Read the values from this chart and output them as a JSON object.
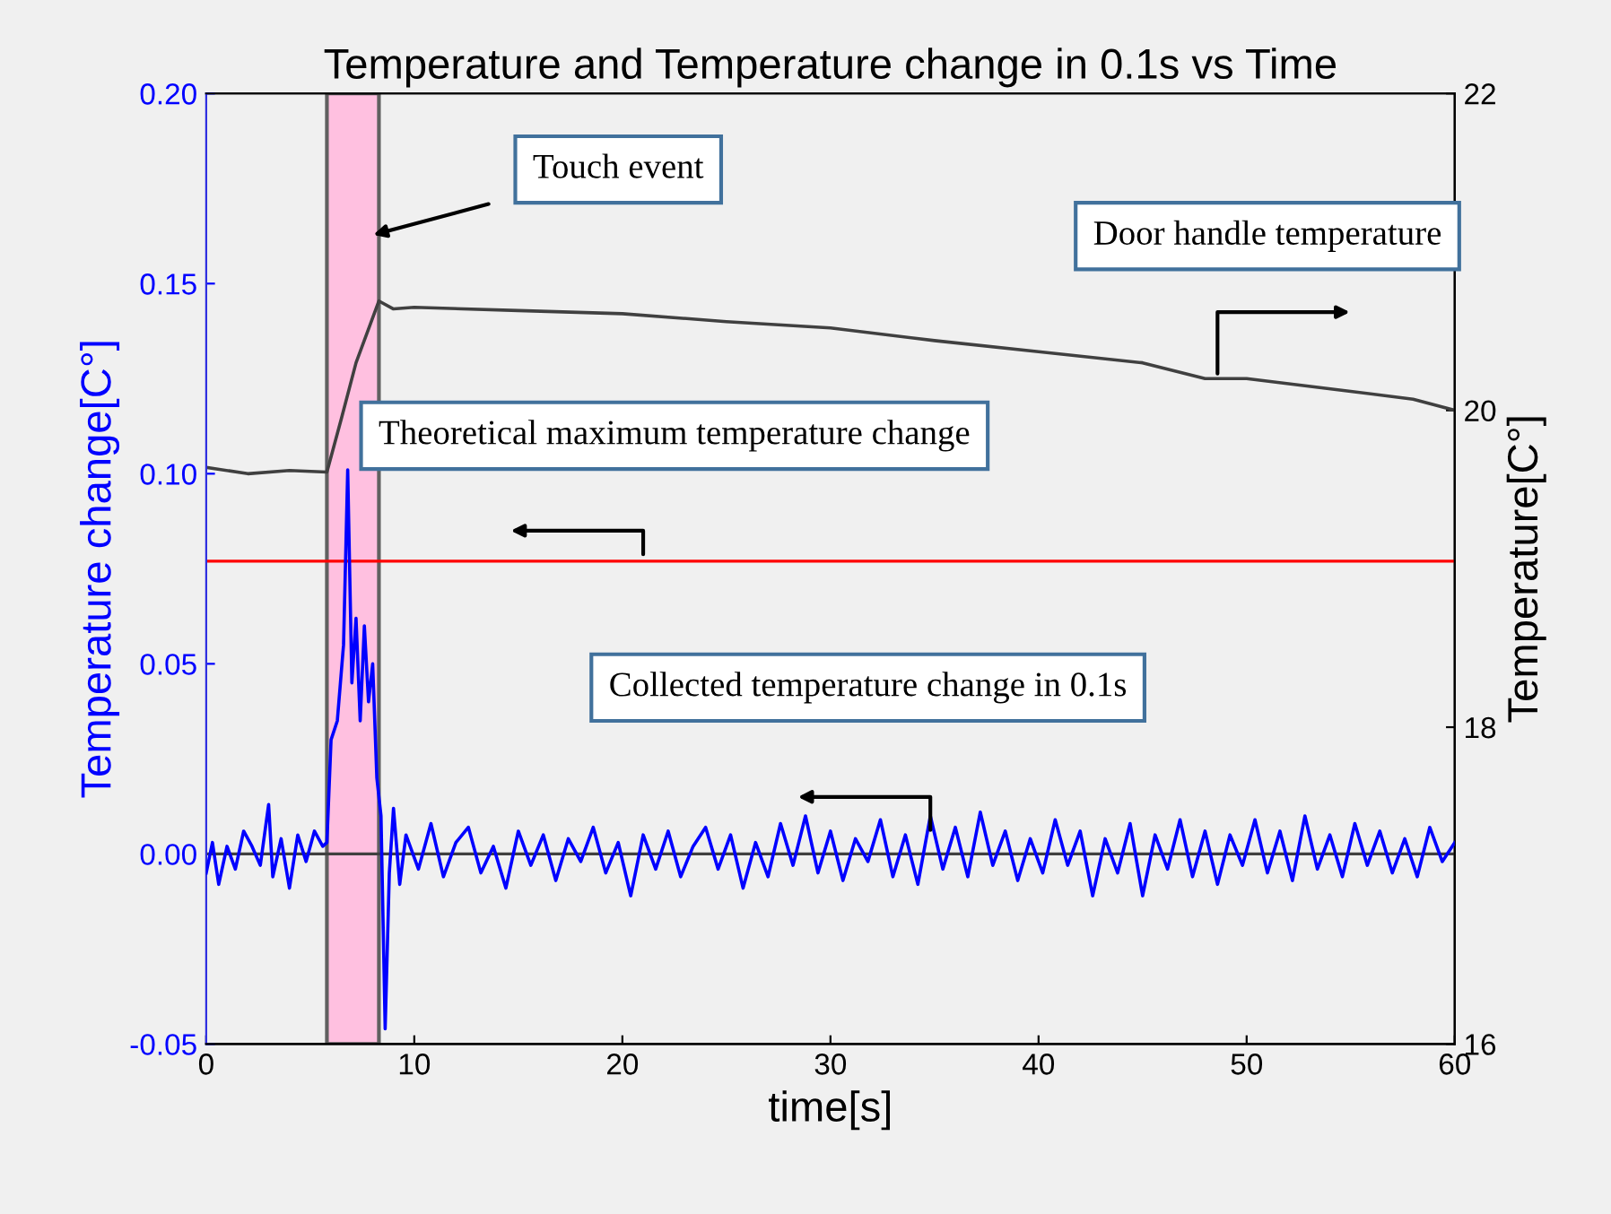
{
  "chart_data": {
    "type": "line",
    "title": "Temperature and Temperature change in 0.1s vs Time",
    "xlabel": "time[s]",
    "ylabel": "Temperature change[C°]",
    "y2label": "Temperature[C°]",
    "xlim": [
      0,
      60
    ],
    "xticks": [
      0,
      10,
      20,
      30,
      40,
      50,
      60
    ],
    "ylim": [
      -0.05,
      0.2
    ],
    "yticks": [
      {
        "value": -0.05,
        "label": "-0.05"
      },
      {
        "value": 0,
        "label": "0.00"
      },
      {
        "value": 0.05,
        "label": "0.05"
      },
      {
        "value": 0.1,
        "label": "0.10"
      },
      {
        "value": 0.15,
        "label": "0.15"
      },
      {
        "value": 0.2,
        "label": "0.20"
      }
    ],
    "y2lim": [
      16,
      22
    ],
    "y2ticks": [
      16,
      18,
      20,
      22
    ],
    "grid": false,
    "legend": false,
    "series": [
      {
        "color": "#0000ff",
        "axis": "y",
        "x": [
          0,
          0.3,
          0.6,
          1,
          1.4,
          1.8,
          2.2,
          2.6,
          3,
          3.2,
          3.6,
          4,
          4.4,
          4.8,
          5.2,
          5.6,
          5.8,
          6.0,
          6.3,
          6.6,
          6.8,
          7.0,
          7.2,
          7.4,
          7.6,
          7.8,
          8.0,
          8.2,
          8.4,
          8.6,
          8.8,
          9.0,
          9.3,
          9.6,
          10.2,
          10.8,
          11.4,
          12,
          12.6,
          13.2,
          13.8,
          14.4,
          15,
          15.6,
          16.2,
          16.8,
          17.4,
          18,
          18.6,
          19.2,
          19.8,
          20.4,
          21,
          21.6,
          22.2,
          22.8,
          23.4,
          24,
          24.6,
          25.2,
          25.8,
          26.4,
          27,
          27.6,
          28.2,
          28.8,
          29.4,
          30,
          30.6,
          31.2,
          31.8,
          32.4,
          33,
          33.6,
          34.2,
          34.8,
          35.4,
          36,
          36.6,
          37.2,
          37.8,
          38.4,
          39,
          39.6,
          40.2,
          40.8,
          41.4,
          42,
          42.6,
          43.2,
          43.8,
          44.4,
          45,
          45.6,
          46.2,
          46.8,
          47.4,
          48,
          48.6,
          49.2,
          49.8,
          50.4,
          51,
          51.6,
          52.2,
          52.8,
          53.4,
          54,
          54.6,
          55.2,
          55.8,
          56.4,
          57,
          57.6,
          58.2,
          58.8,
          59.4,
          60
        ],
        "values": [
          -0.005,
          0.003,
          -0.008,
          0.002,
          -0.004,
          0.006,
          0.002,
          -0.003,
          0.013,
          -0.006,
          0.004,
          -0.009,
          0.005,
          -0.002,
          0.006,
          0.002,
          0.003,
          0.03,
          0.035,
          0.055,
          0.101,
          0.045,
          0.062,
          0.035,
          0.06,
          0.04,
          0.05,
          0.02,
          0.01,
          -0.046,
          -0.005,
          0.012,
          -0.008,
          0.005,
          -0.004,
          0.008,
          -0.006,
          0.003,
          0.007,
          -0.005,
          0.002,
          -0.009,
          0.006,
          -0.003,
          0.005,
          -0.007,
          0.004,
          -0.002,
          0.007,
          -0.005,
          0.003,
          -0.011,
          0.005,
          -0.004,
          0.006,
          -0.006,
          0.002,
          0.007,
          -0.004,
          0.005,
          -0.009,
          0.003,
          -0.006,
          0.008,
          -0.003,
          0.01,
          -0.005,
          0.006,
          -0.007,
          0.004,
          -0.002,
          0.009,
          -0.006,
          0.005,
          -0.008,
          0.01,
          -0.004,
          0.007,
          -0.006,
          0.011,
          -0.003,
          0.006,
          -0.007,
          0.004,
          -0.005,
          0.009,
          -0.003,
          0.006,
          -0.011,
          0.004,
          -0.005,
          0.008,
          -0.011,
          0.005,
          -0.004,
          0.009,
          -0.006,
          0.006,
          -0.008,
          0.005,
          -0.003,
          0.009,
          -0.005,
          0.006,
          -0.007,
          0.01,
          -0.004,
          0.005,
          -0.006,
          0.008,
          -0.003,
          0.006,
          -0.005,
          0.004,
          -0.006,
          0.007,
          -0.002,
          0.003
        ]
      },
      {
        "color": "#404040",
        "axis": "y2",
        "x": [
          0,
          2,
          4,
          5.8,
          6.5,
          7.2,
          8.3,
          9,
          10,
          15,
          20,
          25,
          30,
          35,
          40,
          45,
          48,
          50,
          55,
          58,
          60
        ],
        "values": [
          19.64,
          19.6,
          19.62,
          19.61,
          19.95,
          20.3,
          20.69,
          20.64,
          20.65,
          20.63,
          20.61,
          20.56,
          20.52,
          20.44,
          20.37,
          20.3,
          20.2,
          20.2,
          20.12,
          20.07,
          20.0
        ]
      }
    ],
    "ref_lines": [
      {
        "axis": "y",
        "value": 0.077,
        "color": "#ff0000"
      },
      {
        "axis": "y",
        "value": 0,
        "color": "#404040"
      }
    ],
    "bands": [
      {
        "axis": "x",
        "from": 5.8,
        "to": 8.3,
        "color": "#ffc0e0"
      }
    ],
    "annotations": [
      "Touch event",
      "Door handle temperature",
      "Theoretical maximum temperature change",
      "Collected temperature change in 0.1s"
    ]
  }
}
